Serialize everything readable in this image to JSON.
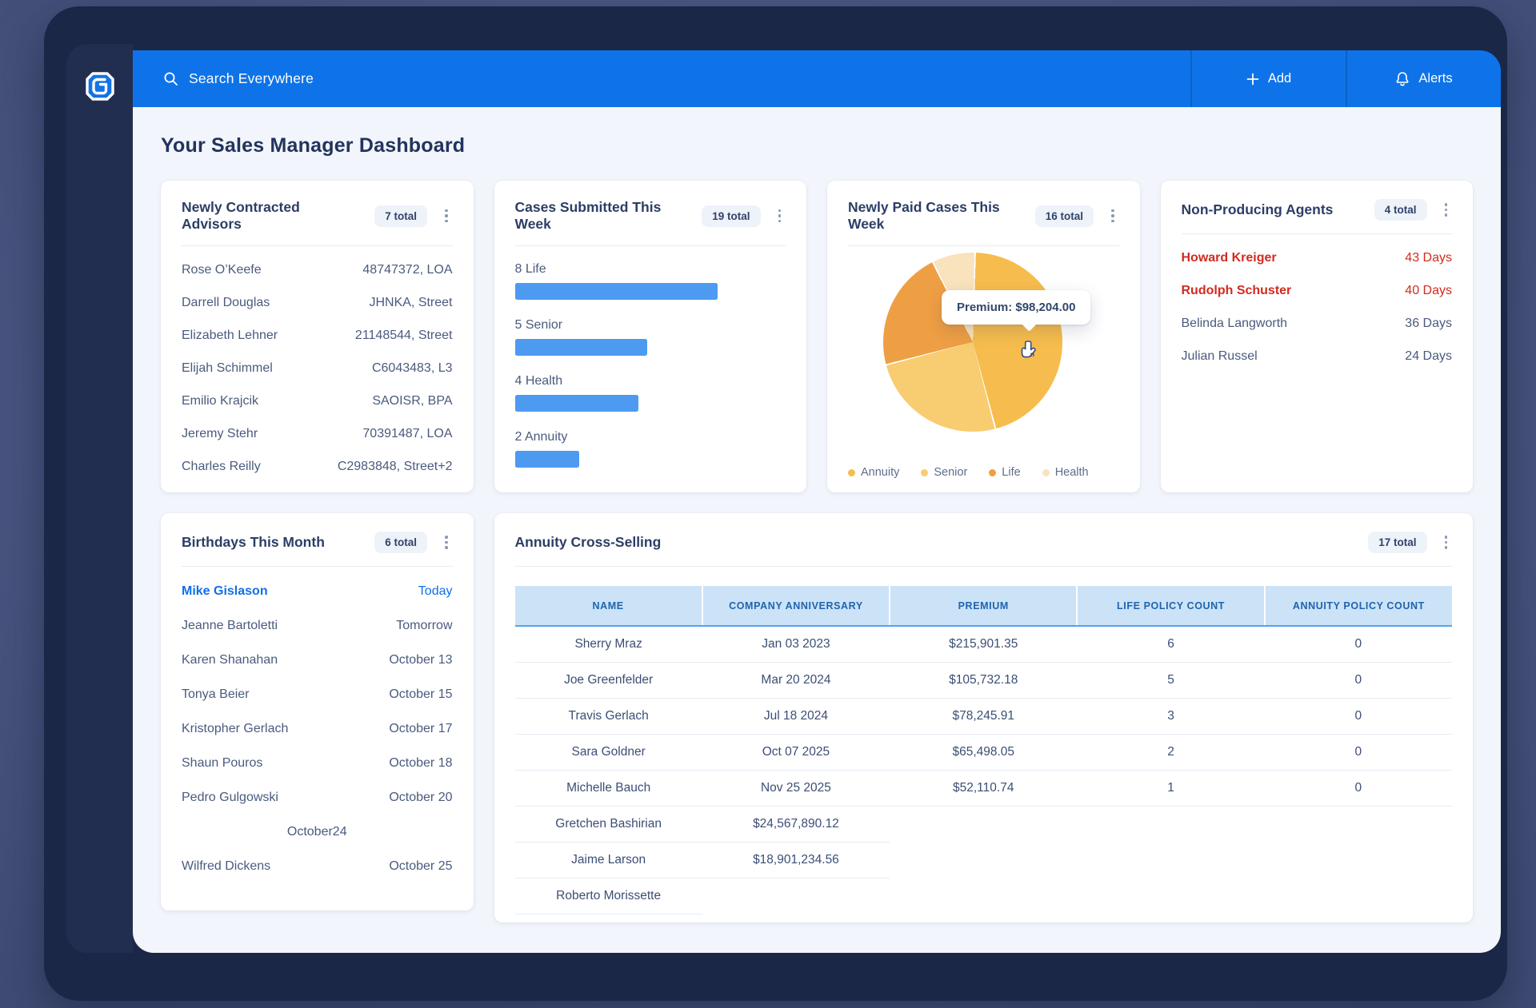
{
  "topbar": {
    "search_placeholder": "Search Everywhere",
    "add_label": "Add",
    "alerts_label": "Alerts"
  },
  "page": {
    "title": "Your Sales Manager Dashboard"
  },
  "colors": {
    "topbar_blue": "#0E73E8",
    "bar_blue": "#4D9BF1",
    "alert_red": "#D22B1F",
    "highlight_blue": "#1170E8"
  },
  "cards": {
    "advisors": {
      "title": "Newly Contracted Advisors",
      "badge": "7 total",
      "rows": [
        {
          "name": "Rose O’Keefe",
          "value": "48747372, LOA"
        },
        {
          "name": "Darrell Douglas",
          "value": "JHNKA, Street"
        },
        {
          "name": "Elizabeth Lehner",
          "value": "21148544, Street"
        },
        {
          "name": "Elijah Schimmel",
          "value": "C6043483, L3"
        },
        {
          "name": "Emilio Krajcik",
          "value": "SAOISR, BPA"
        },
        {
          "name": "Jeremy Stehr",
          "value": "70391487, LOA"
        },
        {
          "name": "Charles Reilly",
          "value": "C2983848, Street+2"
        }
      ]
    },
    "cases": {
      "title": "Cases Submitted This  Week",
      "badge": "19 total"
    },
    "paid": {
      "title": "Newly Paid Cases This Week",
      "badge": "16 total",
      "tooltip": "Premium: $98,204.00"
    },
    "nonproducing": {
      "title": "Non-Producing Agents",
      "badge": "4 total",
      "rows": [
        {
          "name": "Howard Kreiger",
          "value": "43 Days",
          "highlight": "red"
        },
        {
          "name": "Rudolph Schuster",
          "value": "40 Days",
          "highlight": "red"
        },
        {
          "name": "Belinda Langworth",
          "value": "36 Days"
        },
        {
          "name": "Julian Russel",
          "value": "24 Days"
        }
      ]
    },
    "birthdays": {
      "title": "Birthdays This Month",
      "badge": "6 total",
      "rows": [
        {
          "name": "Mike Gislason",
          "value": "Today",
          "highlight": "blue"
        },
        {
          "name": "Jeanne Bartoletti",
          "value": "Tomorrow"
        },
        {
          "name": "Karen Shanahan",
          "value": "October 13"
        },
        {
          "name": "Tonya Beier",
          "value": "October 15"
        },
        {
          "name": "Kristopher Gerlach",
          "value": "October 17"
        },
        {
          "name": "Shaun Pouros",
          "value": "October 18"
        },
        {
          "name": "Pedro Gulgowski",
          "value": "October 20"
        },
        {
          "name": "",
          "value": "October24",
          "centered": true
        },
        {
          "name": "Wilfred Dickens",
          "value": "October 25"
        }
      ]
    },
    "crosssell": {
      "title": "Annuity Cross-Selling",
      "badge": "17 total",
      "columns": [
        "Name",
        "Company Anniversary",
        "Premium",
        "Life Policy Count",
        "Annuity Policy Count"
      ],
      "rows": [
        {
          "cells": [
            "Sherry Mraz",
            "Jan 03 2023",
            "$215,901.35",
            "6",
            "0"
          ]
        },
        {
          "cells": [
            "Joe Greenfelder",
            "Mar 20 2024",
            "$105,732.18",
            "5",
            "0"
          ]
        },
        {
          "cells": [
            "Travis Gerlach",
            "Jul 18 2024",
            "$78,245.91",
            "3",
            "0"
          ]
        },
        {
          "cells": [
            "Sara Goldner",
            "Oct 07 2025",
            "$65,498.05",
            "2",
            "0"
          ]
        },
        {
          "cells": [
            "Michelle Bauch",
            "Nov 25 2025",
            "$52,110.74",
            "1",
            "0"
          ]
        },
        {
          "cells": [
            "Gretchen Bashirian",
            "$24,567,890.12"
          ],
          "partial": true
        },
        {
          "cells": [
            "Jaime Larson",
            "$18,901,234.56"
          ],
          "partial": true
        },
        {
          "cells": [
            "Roberto Morissette"
          ],
          "partial": true
        }
      ]
    }
  },
  "chart_data": [
    {
      "type": "bar",
      "orientation": "horizontal",
      "title": "Cases Submitted This Week",
      "categories": [
        "Life",
        "Senior",
        "Health",
        "Annuity"
      ],
      "values": [
        8,
        5,
        4,
        2
      ],
      "labels": [
        "8 Life",
        "5 Senior",
        "4 Health",
        "2 Annuity"
      ],
      "bar_color": "#4D9BF1",
      "bar_width_pct": [
        75,
        49,
        45.5,
        23.7
      ],
      "xlim": [
        0,
        8
      ],
      "total": 19
    },
    {
      "type": "pie",
      "title": "Newly Paid Cases This Week",
      "total": 16,
      "start_angle_deg": 2,
      "slices": [
        {
          "label": "Annuity",
          "pct": 45.5,
          "color": "#F6BC4D"
        },
        {
          "label": "Senior",
          "pct": 25.0,
          "color": "#F8CC71"
        },
        {
          "label": "Life",
          "pct": 21.7,
          "color": "#EF9F43"
        },
        {
          "label": "Health",
          "pct": 7.8,
          "color": "#F8E3BD"
        }
      ],
      "legend_position": "bottom",
      "tooltip": "Premium: $98,204.00"
    }
  ]
}
